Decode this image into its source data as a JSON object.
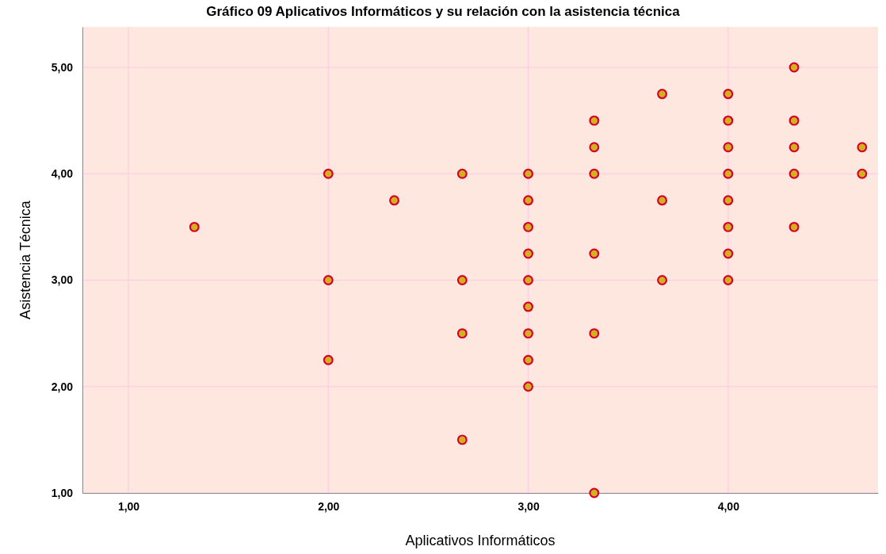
{
  "chart_data": {
    "type": "scatter",
    "title": "Gráfico 09 Aplicativos Informáticos y su relación con la asistencia técnica",
    "xlabel": "Aplicativos Informáticos",
    "ylabel": "Asistencia Técnica",
    "x": [
      1.33,
      2,
      2,
      2,
      2.33,
      2.67,
      2.67,
      2.67,
      2.67,
      3,
      3,
      3,
      3,
      3,
      3,
      3,
      3,
      3,
      3.33,
      3.33,
      3.33,
      3.33,
      3.33,
      3.33,
      3.67,
      3.67,
      3.67,
      4,
      4,
      4,
      4,
      4,
      4,
      4,
      4,
      4.33,
      4.33,
      4.33,
      4.33,
      4.33,
      4.67,
      4.67
    ],
    "series": [
      {
        "color": "#d4b01e",
        "values": [
          3.5,
          4,
          3,
          2.25,
          3.75,
          4,
          3,
          2.5,
          1.5,
          4,
          3.75,
          3.5,
          3.25,
          3,
          2.75,
          2.5,
          2.25,
          2,
          4.5,
          4.25,
          4,
          3.25,
          2.5,
          1,
          4.75,
          3.75,
          3,
          4.75,
          4.5,
          4.25,
          4,
          3.75,
          3.5,
          3.25,
          3,
          5,
          4.5,
          4.25,
          4,
          3.5,
          4.25,
          4
        ]
      }
    ],
    "xlim": [
      0.77,
      4.75
    ],
    "ylim": [
      1,
      5.38
    ],
    "xticks": [
      {
        "value": 1,
        "label": "1,00"
      },
      {
        "value": 2,
        "label": "2,00"
      },
      {
        "value": 3,
        "label": "3,00"
      },
      {
        "value": 4,
        "label": "4,00"
      }
    ],
    "yticks": [
      {
        "value": 1,
        "label": "1,00"
      },
      {
        "value": 2,
        "label": "2,00"
      },
      {
        "value": 3,
        "label": "3,00"
      },
      {
        "value": 4,
        "label": "4,00"
      },
      {
        "value": 5,
        "label": "5,00"
      }
    ],
    "grid": true,
    "marker": "circle"
  }
}
